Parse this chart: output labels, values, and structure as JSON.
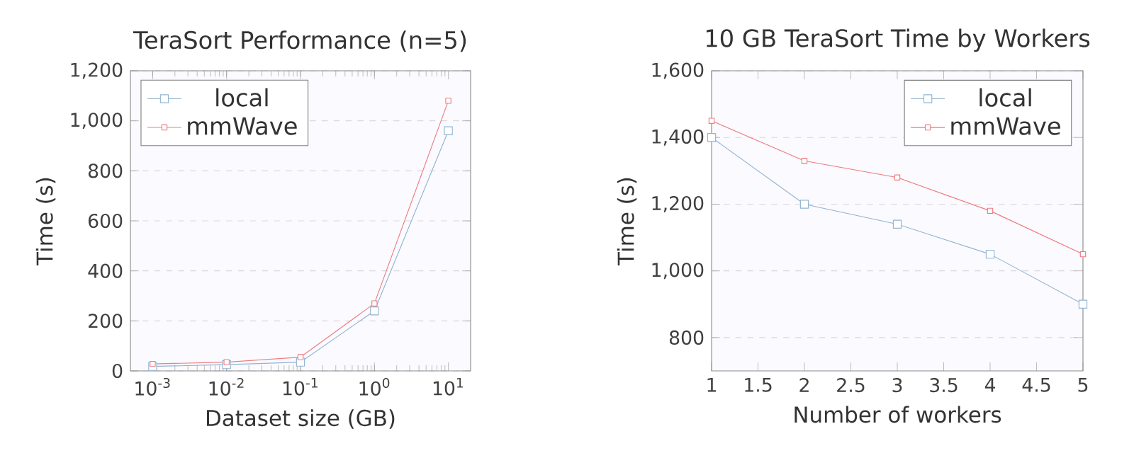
{
  "chart_data": [
    {
      "type": "line",
      "title": "TeraSort Performance (n=5)",
      "xlabel": "Dataset size (GB)",
      "ylabel": "Time (s)",
      "log": "x",
      "x": [
        0.001,
        0.01,
        0.1,
        1,
        10
      ],
      "series": [
        {
          "name": "local",
          "color": "#92b4d0",
          "values": [
            18,
            25,
            35,
            240,
            960
          ]
        },
        {
          "name": "mmWave",
          "color": "#f07a80",
          "values": [
            28,
            35,
            55,
            270,
            1080
          ]
        }
      ],
      "xlim": [
        0.0005,
        20
      ],
      "ylim": [
        0,
        1200
      ],
      "xticks": [
        {
          "value": 0.001,
          "label": "10$^{-3}$"
        },
        {
          "value": 0.01,
          "label": "10$^{-2}$"
        },
        {
          "value": 0.1,
          "label": "10$^{-1}$"
        },
        {
          "value": 1,
          "label": "10$^{0}$"
        },
        {
          "value": 10,
          "label": "10$^{1}$"
        }
      ],
      "yticks": [
        0,
        200,
        400,
        600,
        800,
        {
          "value": 1000,
          "label": "1,000"
        },
        {
          "value": 1200,
          "label": "1,200"
        }
      ],
      "grid": "y",
      "legend": "top left",
      "marker": "square",
      "line_style": "solid"
    },
    {
      "type": "line",
      "title": "10 GB TeraSort Time by Workers",
      "xlabel": "Number of workers",
      "ylabel": "Time (s)",
      "x": [
        1,
        2,
        3,
        4,
        5
      ],
      "series": [
        {
          "name": "local",
          "color": "#92b4d0",
          "values": [
            1400,
            1200,
            1140,
            1050,
            900
          ]
        },
        {
          "name": "mmWave",
          "color": "#f07a80",
          "values": [
            1450,
            1330,
            1280,
            1180,
            1050
          ]
        }
      ],
      "xlim": [
        1,
        5
      ],
      "ylim": [
        700,
        1600
      ],
      "xticks": [
        1,
        1.5,
        2,
        2.5,
        3,
        3.5,
        4,
        4.5,
        5
      ],
      "yticks": [
        800,
        {
          "value": 1000,
          "label": "1,000"
        },
        {
          "value": 1200,
          "label": "1,200"
        },
        {
          "value": 1400,
          "label": "1,400"
        },
        {
          "value": 1600,
          "label": "1,600"
        }
      ],
      "grid": "y",
      "legend": "top right",
      "marker": "square",
      "line_style": "solid"
    }
  ]
}
